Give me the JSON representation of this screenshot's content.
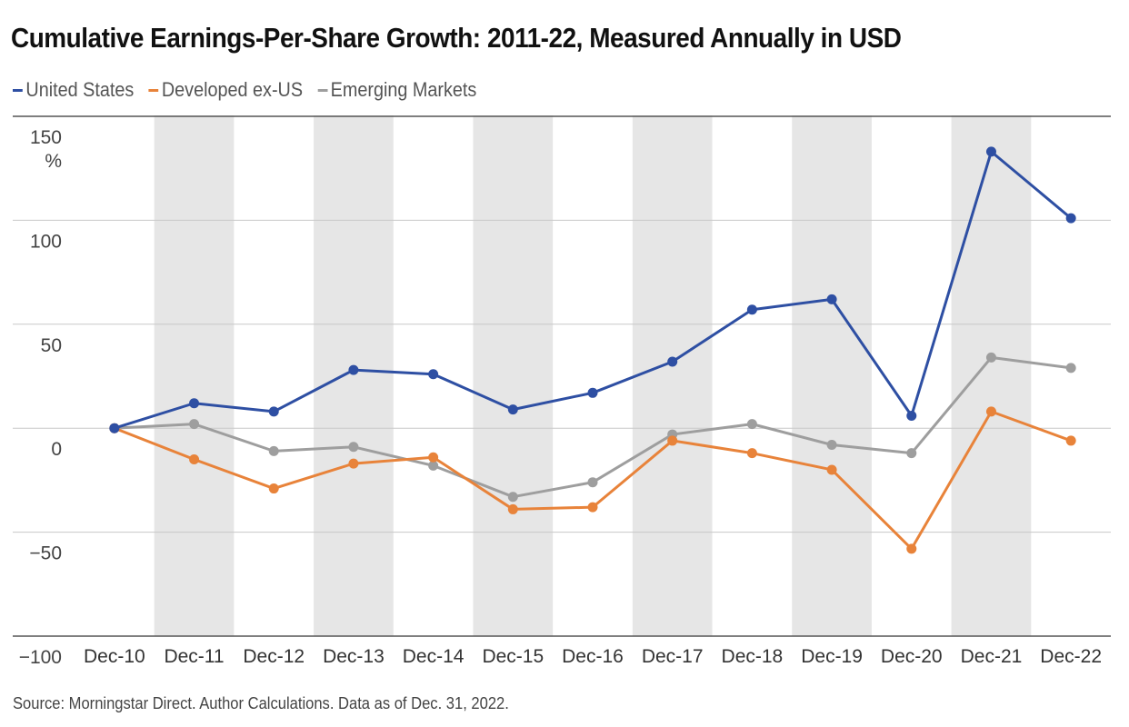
{
  "title": "Cumulative Earnings-Per-Share Growth: 2011-22, Measured Annually in USD",
  "source": "Source: Morningstar Direct. Author Calculations. Data as of Dec. 31, 2022.",
  "colors": {
    "us": "#2e4fa3",
    "dev": "#e8833a",
    "em": "#9e9e9e",
    "band": "#e6e6e6",
    "grid": "#c8c8c8",
    "axis": "#555555"
  },
  "chart_data": {
    "type": "line",
    "x": [
      "Dec-10",
      "Dec-11",
      "Dec-12",
      "Dec-13",
      "Dec-14",
      "Dec-15",
      "Dec-16",
      "Dec-17",
      "Dec-18",
      "Dec-19",
      "Dec-20",
      "Dec-21",
      "Dec-22"
    ],
    "yticks": [
      150,
      100,
      50,
      0,
      -50,
      -100
    ],
    "ytick_labels": [
      "150",
      "100",
      "50",
      "0",
      "−50",
      "−100"
    ],
    "ylabel": "%",
    "ylim": [
      -100,
      150
    ],
    "grid": true,
    "legend_position": "top-left",
    "series": [
      {
        "name": "United States",
        "color": "#2e4fa3",
        "values": [
          0,
          12,
          8,
          28,
          26,
          9,
          17,
          32,
          57,
          62,
          6,
          133,
          101
        ]
      },
      {
        "name": "Developed ex-US",
        "color": "#e8833a",
        "values": [
          0,
          -15,
          -29,
          -17,
          -14,
          -39,
          -38,
          -6,
          -12,
          -20,
          -58,
          8,
          -6
        ]
      },
      {
        "name": "Emerging Markets",
        "color": "#9e9e9e",
        "values": [
          0,
          2,
          -11,
          -9,
          -18,
          -33,
          -26,
          -3,
          2,
          -8,
          -12,
          34,
          29
        ]
      }
    ]
  }
}
